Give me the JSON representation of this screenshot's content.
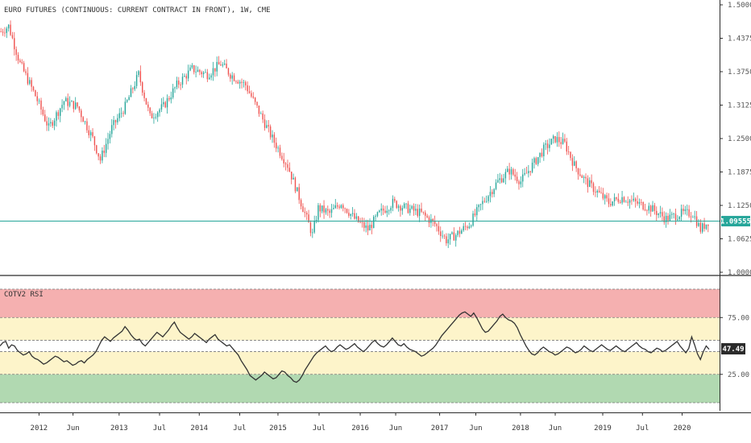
{
  "colors": {
    "up": "#26a69a",
    "down": "#ef5350",
    "price_line": "#26a69a",
    "rsi_line": "#333333",
    "overbought_band": "#f4a7a7",
    "upper_mid_band": "#fdf3c4",
    "lower_mid_band": "#fdf3c4",
    "oversold_band": "#a8d5a8",
    "rsi_badge": "#2b2b2b"
  },
  "chart_data": [
    {
      "type": "candlestick",
      "title": "EURO FUTURES (CONTINUOUS: CURRENT CONTRACT IN FRONT), 1W, CME",
      "ylim": [
        1.0,
        1.5
      ],
      "yticks": [
        "1.50000",
        "1.43750",
        "1.37500",
        "1.31250",
        "1.25000",
        "1.18750",
        "1.12500",
        "1.06250",
        "1.00000"
      ],
      "last_price": "1.09555",
      "path_anchors": [
        [
          0,
          1.45
        ],
        [
          4,
          1.46
        ],
        [
          10,
          1.39
        ],
        [
          18,
          1.33
        ],
        [
          25,
          1.27
        ],
        [
          33,
          1.32
        ],
        [
          40,
          1.31
        ],
        [
          48,
          1.25
        ],
        [
          52,
          1.21
        ],
        [
          58,
          1.27
        ],
        [
          65,
          1.31
        ],
        [
          72,
          1.37
        ],
        [
          78,
          1.29
        ],
        [
          85,
          1.31
        ],
        [
          92,
          1.35
        ],
        [
          100,
          1.38
        ],
        [
          108,
          1.37
        ],
        [
          115,
          1.39
        ],
        [
          120,
          1.37
        ],
        [
          128,
          1.35
        ],
        [
          135,
          1.3
        ],
        [
          142,
          1.25
        ],
        [
          150,
          1.2
        ],
        [
          158,
          1.12
        ],
        [
          163,
          1.07
        ],
        [
          166,
          1.12
        ],
        [
          172,
          1.11
        ],
        [
          178,
          1.13
        ],
        [
          185,
          1.1
        ],
        [
          192,
          1.08
        ],
        [
          198,
          1.11
        ],
        [
          205,
          1.13
        ],
        [
          212,
          1.12
        ],
        [
          220,
          1.11
        ],
        [
          227,
          1.09
        ],
        [
          233,
          1.06
        ],
        [
          238,
          1.07
        ],
        [
          245,
          1.09
        ],
        [
          252,
          1.13
        ],
        [
          260,
          1.17
        ],
        [
          266,
          1.19
        ],
        [
          272,
          1.17
        ],
        [
          278,
          1.2
        ],
        [
          284,
          1.23
        ],
        [
          290,
          1.25
        ],
        [
          295,
          1.24
        ],
        [
          300,
          1.2
        ],
        [
          306,
          1.17
        ],
        [
          312,
          1.15
        ],
        [
          318,
          1.13
        ],
        [
          325,
          1.14
        ],
        [
          332,
          1.13
        ],
        [
          340,
          1.12
        ],
        [
          348,
          1.1
        ],
        [
          356,
          1.11
        ],
        [
          362,
          1.11
        ],
        [
          366,
          1.08
        ],
        [
          370,
          1.095
        ]
      ]
    },
    {
      "type": "line",
      "title": "COTV2 RSI",
      "ylim": [
        0,
        100
      ],
      "yticks": [
        "75.00",
        "25.00"
      ],
      "bands": [
        {
          "name": "overbought",
          "from": 75,
          "to": 100
        },
        {
          "name": "upper-neutral",
          "from": 55,
          "to": 75
        },
        {
          "name": "lower-neutral",
          "from": 25,
          "to": 45
        },
        {
          "name": "oversold",
          "from": 0,
          "to": 25
        }
      ],
      "levels": [
        100,
        75,
        55,
        45,
        25,
        0
      ],
      "last_value": "47.49",
      "series": [
        50,
        53,
        54,
        48,
        51,
        50,
        46,
        44,
        42,
        43,
        45,
        41,
        39,
        38,
        36,
        34,
        35,
        37,
        39,
        41,
        40,
        38,
        36,
        37,
        35,
        33,
        34,
        36,
        37,
        35,
        38,
        40,
        42,
        45,
        50,
        55,
        58,
        56,
        54,
        57,
        59,
        61,
        63,
        67,
        64,
        60,
        57,
        55,
        56,
        52,
        50,
        53,
        56,
        59,
        62,
        60,
        58,
        61,
        64,
        68,
        71,
        66,
        62,
        60,
        58,
        56,
        58,
        61,
        59,
        57,
        55,
        53,
        56,
        58,
        60,
        56,
        54,
        52,
        50,
        51,
        48,
        45,
        42,
        37,
        33,
        29,
        24,
        22,
        20,
        22,
        24,
        27,
        25,
        23,
        21,
        22,
        25,
        28,
        27,
        24,
        22,
        19,
        18,
        20,
        24,
        29,
        33,
        37,
        41,
        44,
        46,
        48,
        50,
        47,
        45,
        46,
        49,
        51,
        49,
        47,
        48,
        50,
        52,
        49,
        47,
        45,
        47,
        50,
        53,
        55,
        52,
        50,
        49,
        51,
        54,
        57,
        54,
        51,
        50,
        52,
        49,
        47,
        46,
        45,
        43,
        41,
        42,
        44,
        46,
        48,
        51,
        55,
        59,
        62,
        65,
        68,
        71,
        74,
        77,
        79,
        80,
        78,
        76,
        79,
        75,
        70,
        65,
        62,
        63,
        66,
        69,
        72,
        76,
        78,
        75,
        73,
        72,
        70,
        66,
        60,
        55,
        50,
        46,
        43,
        42,
        44,
        47,
        49,
        47,
        45,
        44,
        42,
        43,
        45,
        47,
        49,
        48,
        46,
        44,
        45,
        47,
        50,
        48,
        46,
        45,
        47,
        49,
        51,
        49,
        47,
        46,
        48,
        50,
        48,
        46,
        45,
        47,
        49,
        51,
        53,
        50,
        48,
        47,
        45,
        44,
        46,
        48,
        47,
        45,
        46,
        48,
        50,
        52,
        54,
        50,
        47,
        44,
        48,
        58,
        51,
        43,
        38,
        45,
        50,
        47
      ]
    }
  ],
  "x_axis": {
    "ticks": [
      {
        "label": "2012",
        "pos": 0.055
      },
      {
        "label": "Jun",
        "pos": 0.103
      },
      {
        "label": "2013",
        "pos": 0.168
      },
      {
        "label": "Jul",
        "pos": 0.225
      },
      {
        "label": "2014",
        "pos": 0.281
      },
      {
        "label": "Jul",
        "pos": 0.338
      },
      {
        "label": "2015",
        "pos": 0.392
      },
      {
        "label": "Jul",
        "pos": 0.45
      },
      {
        "label": "2016",
        "pos": 0.508
      },
      {
        "label": "Jun",
        "pos": 0.558
      },
      {
        "label": "2017",
        "pos": 0.62
      },
      {
        "label": "Jun",
        "pos": 0.671
      },
      {
        "label": "2018",
        "pos": 0.734
      },
      {
        "label": "Jun",
        "pos": 0.783
      },
      {
        "label": "2019",
        "pos": 0.85
      },
      {
        "label": "Jul",
        "pos": 0.906
      },
      {
        "label": "2020",
        "pos": 0.962
      }
    ]
  }
}
